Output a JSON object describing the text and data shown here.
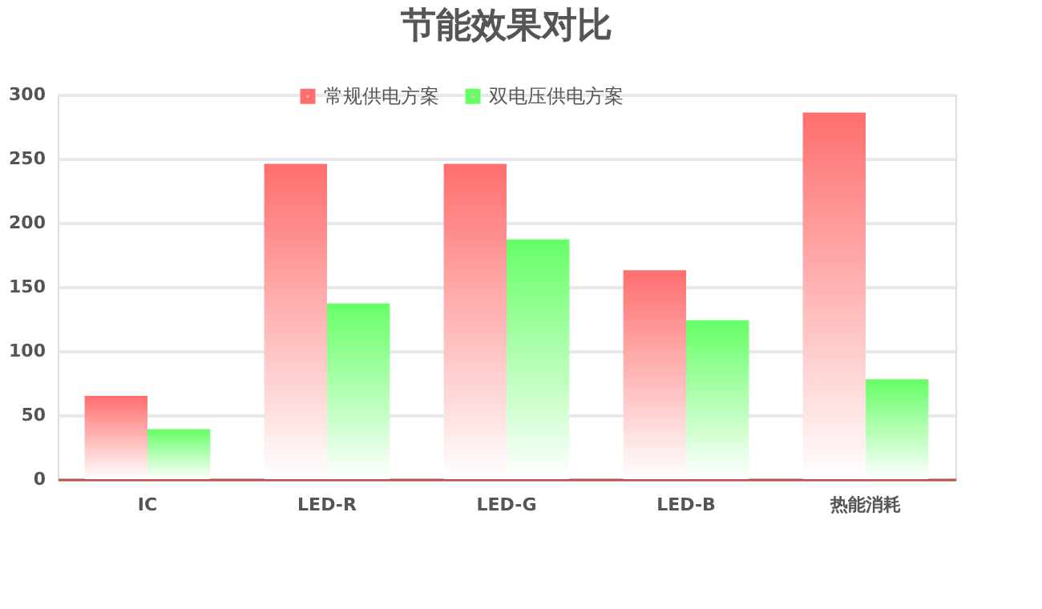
{
  "chart_data": {
    "type": "bar",
    "title": "节能效果对比",
    "categories": [
      "IC",
      "LED-R",
      "LED-G",
      "LED-B",
      "热能消耗"
    ],
    "series": [
      {
        "name": "常规供电方案",
        "color": "#ff6e6e",
        "values": [
          65,
          246,
          246,
          163,
          286
        ]
      },
      {
        "name": "双电压供电方案",
        "color": "#66ff66",
        "values": [
          39,
          137,
          187,
          124,
          78
        ]
      }
    ],
    "ylim": [
      0,
      300
    ],
    "yticks": [
      0,
      50,
      100,
      150,
      200,
      250,
      300
    ],
    "grid": "y",
    "legend": "top"
  }
}
